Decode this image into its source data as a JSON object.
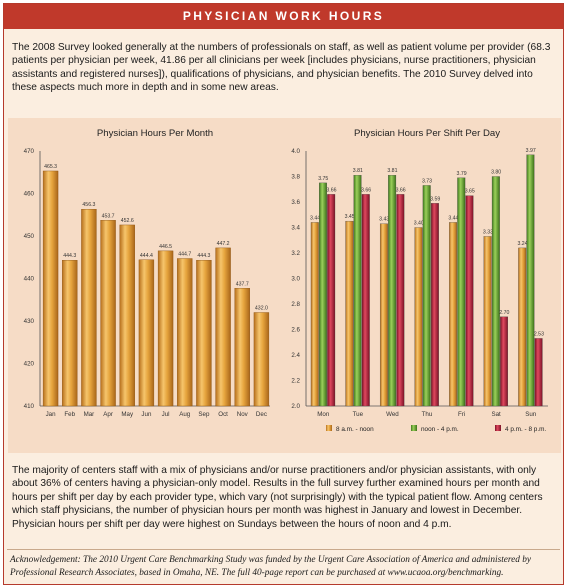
{
  "header": {
    "title": "PHYSICIAN WORK HOURS"
  },
  "intro_text": "The 2008 Survey looked generally at the numbers of professionals on staff, as well as patient volume per provider (68.3 patients per physician per week, 41.86 per all clinicians per week [includes physicians, nurse practitioners, physician assistants and registered nurses]), qualifications of physicians, and physician benefits. The 2010 Survey delved into these aspects much more in depth and in some new areas.",
  "outro_text": "The majority of centers staff with a mix of physicians and/or nurse practitioners and/or physician assistants, with only about 36% of centers having a physician-only model. Results in the full survey further examined hours per month and hours per shift per day by each provider type, which vary (not surprisingly) with the typical patient flow. Among centers which staff physicians, the number of physician hours per month was highest in January and lowest in December. Physician hours per shift per day were highest on Sundays between the hours of noon and 4 p.m.",
  "acknowledgement": "Acknowledgement: The 2010 Urgent Care Benchmarking Study was funded by the Urgent Care Association of America and administered by Professional Research Associates, based in Omaha, NE. The full 40-page report can be purchased at www.ucaoa.org/benchmarking.",
  "colors": {
    "header": "#c0392b",
    "bar_orange": "#e3a13a",
    "bar_green": "#6fa83a",
    "bar_red": "#b8263d"
  },
  "chart_data": [
    {
      "type": "bar",
      "title": "Physician Hours Per Month",
      "categories": [
        "Jan",
        "Feb",
        "Mar",
        "Apr",
        "May",
        "Jun",
        "Jul",
        "Aug",
        "Sep",
        "Oct",
        "Nov",
        "Dec"
      ],
      "values": [
        465.3,
        444.3,
        456.3,
        453.7,
        452.6,
        444.4,
        446.5,
        444.7,
        444.3,
        447.2,
        437.7,
        432.0
      ],
      "value_labels": [
        "465.3",
        "444.3",
        "456.3",
        "453.7",
        "452.6",
        "444.4",
        "446.5",
        "444.7",
        "444.3",
        "447.2",
        "437.7",
        "432.0"
      ],
      "ylim": [
        410,
        470
      ],
      "yticks": [
        410,
        420,
        430,
        440,
        450,
        460,
        470
      ],
      "ytick_labels": [
        "410",
        "420",
        "430",
        "440",
        "450",
        "460",
        "470"
      ],
      "grid": false
    },
    {
      "type": "bar",
      "title": "Physician Hours Per Shift Per Day",
      "categories": [
        "Mon",
        "Tue",
        "Wed",
        "Thu",
        "Fri",
        "Sat",
        "Sun"
      ],
      "series": [
        {
          "name": "8 a.m. - noon",
          "values": [
            3.44,
            3.45,
            3.43,
            3.4,
            3.44,
            3.33,
            3.24
          ],
          "labels": [
            "3.44",
            "3.45",
            "3.43",
            "3.40",
            "3.44",
            "3.33",
            "3.24"
          ]
        },
        {
          "name": "noon - 4 p.m.",
          "values": [
            3.75,
            3.81,
            3.81,
            3.73,
            3.79,
            3.8,
            3.97
          ],
          "labels": [
            "3.75",
            "3.81",
            "3.81",
            "3.73",
            "3.79",
            "3.80",
            "3.97"
          ]
        },
        {
          "name": "4 p.m. - 8 p.m.",
          "values": [
            3.66,
            3.66,
            3.66,
            3.59,
            3.65,
            2.7,
            2.53
          ],
          "labels": [
            "3.66",
            "3.66",
            "3.66",
            "3.59",
            "3.65",
            "2.70",
            "2.53"
          ]
        }
      ],
      "ylim": [
        2.0,
        4.0
      ],
      "yticks": [
        2.0,
        2.2,
        2.4,
        2.6,
        2.8,
        3.0,
        3.2,
        3.4,
        3.6,
        3.8,
        4.0
      ],
      "ytick_labels": [
        "2.0",
        "2.2",
        "2.4",
        "2.6",
        "2.8",
        "3.0",
        "3.2",
        "3.4",
        "3.6",
        "3.8",
        "4.0"
      ],
      "legend": "bottom",
      "grid": false
    }
  ]
}
